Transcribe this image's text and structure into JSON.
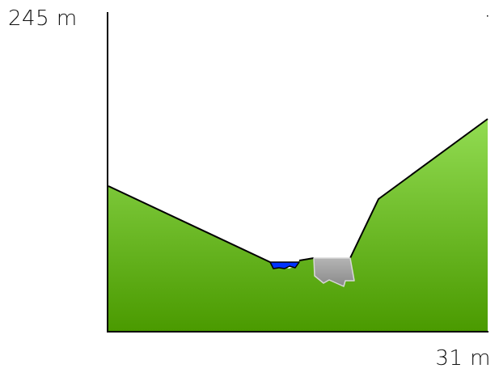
{
  "diagram": {
    "y_axis_max_label": "245 m",
    "x_axis_max_label": "31 m"
  },
  "colors": {
    "terrain_top": "#92dc52",
    "terrain_bottom": "#4a9a00",
    "water": "#0033ff",
    "rock_fill": "#9a9a9a",
    "rock_stroke": "#d8d8d8",
    "outline": "#000000"
  }
}
